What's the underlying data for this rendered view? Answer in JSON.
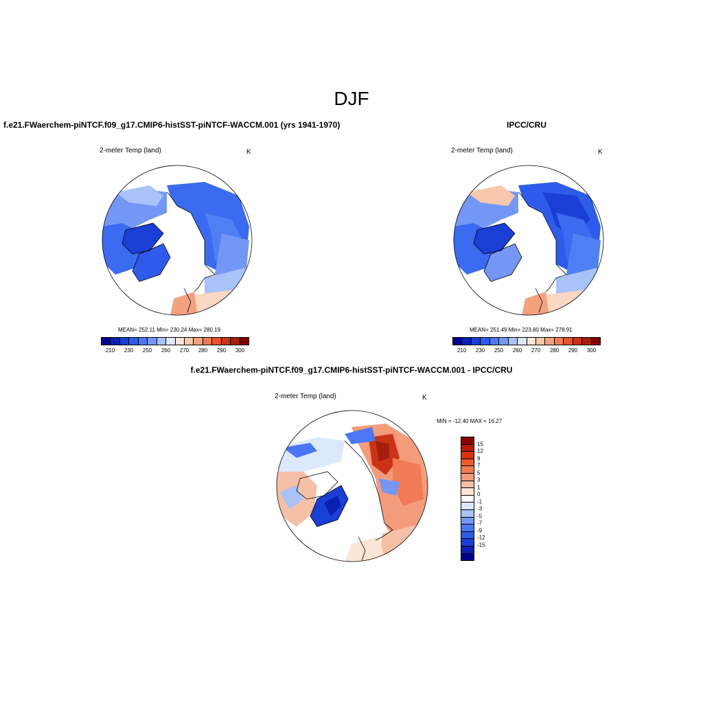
{
  "title": "DJF",
  "panels": {
    "left": {
      "title": "f.e21.FWaerchem-piNTCF.f09_g17.CMIP6-histSST-piNTCF-WACCM.001 (yrs 1941-1970)",
      "variable": "2-meter Temp (land)",
      "units": "K",
      "stats": "MEAN= 252.11   Min= 230.24   Max= 280.19"
    },
    "right": {
      "title": "IPCC/CRU",
      "variable": "2-meter Temp (land)",
      "units": "K",
      "stats": "MEAN= 251.49   Min= 223.80   Max= 278.91"
    },
    "diff": {
      "title": "f.e21.FWaerchem-piNTCF.f09_g17.CMIP6-histSST-piNTCF-WACCM.001 - IPCC/CRU",
      "variable": "2-meter Temp (land)",
      "units": "K",
      "stats": "MIN = -12.40 MAX =  16.27"
    }
  },
  "colorbars": {
    "absolute": {
      "labels": [
        "210",
        "230",
        "250",
        "260",
        "270",
        "280",
        "290",
        "300"
      ],
      "colors": [
        "#00008b",
        "#0a1fb4",
        "#1a3fd6",
        "#2f5bea",
        "#4c77f4",
        "#7497f6",
        "#a9c2f8",
        "#dce8fb",
        "#fbe5d6",
        "#f8c8ac",
        "#f3a27f",
        "#ee7a52",
        "#e6532c",
        "#c93316",
        "#a51d0b",
        "#800000"
      ]
    },
    "difference": {
      "labels": [
        "15",
        "12",
        "9",
        "7",
        "5",
        "3",
        "1",
        "0",
        "-1",
        "-3",
        "-5",
        "-7",
        "-9",
        "-12",
        "-15"
      ],
      "colors": [
        "#8b0000",
        "#b81c0a",
        "#d83414",
        "#ee5a2e",
        "#f07b55",
        "#f39c7c",
        "#f6c0a6",
        "#fbe5d6",
        "#ffffff",
        "#dce8fb",
        "#a9c2f8",
        "#7497f6",
        "#4c77f4",
        "#2f5bea",
        "#1a3fd6",
        "#0a1fb4",
        "#00008b"
      ]
    }
  }
}
